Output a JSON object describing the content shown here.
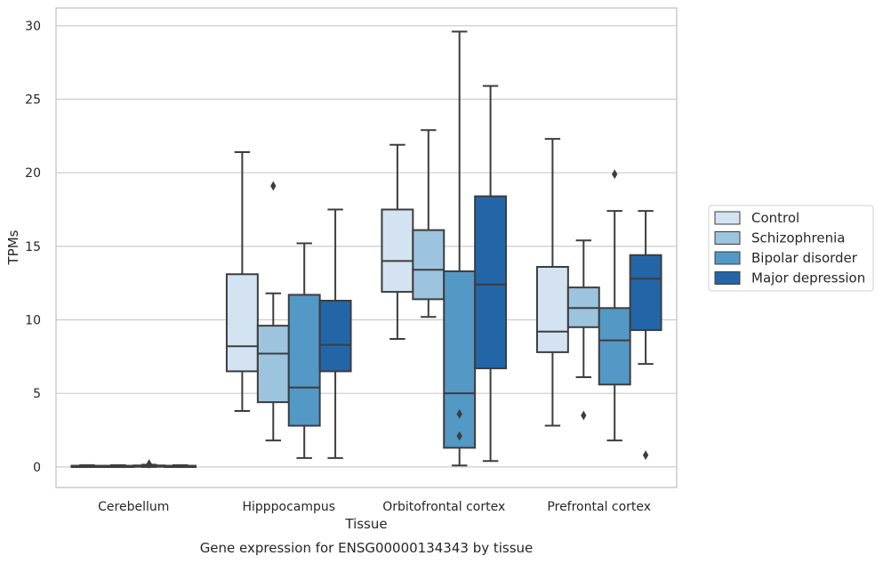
{
  "chart_data": {
    "type": "box",
    "title": "",
    "caption": "Gene expression for ENSG00000134343 by tissue",
    "xlabel": "Tissue",
    "ylabel": "TPMs",
    "ylim": [
      -1.4,
      31.2
    ],
    "yticks": [
      0,
      5,
      10,
      15,
      20,
      25,
      30
    ],
    "grid": true,
    "legend_placement": "center-right, outside plot",
    "categories": [
      "Cerebellum",
      "Hipppocampus",
      "Orbitofrontal cortex",
      "Prefrontal cortex"
    ],
    "series": [
      {
        "name": "Control",
        "color": "#d4e3f2",
        "boxes": [
          {
            "whisker_low": 0.0,
            "q1": 0.02,
            "median": 0.05,
            "q3": 0.08,
            "whisker_high": 0.12,
            "outliers": []
          },
          {
            "whisker_low": 3.8,
            "q1": 6.5,
            "median": 8.2,
            "q3": 13.1,
            "whisker_high": 21.4,
            "outliers": []
          },
          {
            "whisker_low": 8.7,
            "q1": 11.9,
            "median": 14.0,
            "q3": 17.5,
            "whisker_high": 21.9,
            "outliers": []
          },
          {
            "whisker_low": 2.8,
            "q1": 7.8,
            "median": 9.2,
            "q3": 13.6,
            "whisker_high": 22.3,
            "outliers": []
          }
        ]
      },
      {
        "name": "Schizophrenia",
        "color": "#9cc4de",
        "boxes": [
          {
            "whisker_low": 0.0,
            "q1": 0.02,
            "median": 0.05,
            "q3": 0.08,
            "whisker_high": 0.12,
            "outliers": []
          },
          {
            "whisker_low": 1.8,
            "q1": 4.4,
            "median": 7.7,
            "q3": 9.6,
            "whisker_high": 11.8,
            "outliers": [
              19.1
            ]
          },
          {
            "whisker_low": 10.2,
            "q1": 11.4,
            "median": 13.4,
            "q3": 16.1,
            "whisker_high": 22.9,
            "outliers": []
          },
          {
            "whisker_low": 6.1,
            "q1": 9.5,
            "median": 10.8,
            "q3": 12.2,
            "whisker_high": 15.4,
            "outliers": [
              3.5
            ]
          }
        ]
      },
      {
        "name": "Bipolar disorder",
        "color": "#5498c6",
        "boxes": [
          {
            "whisker_low": 0.0,
            "q1": 0.02,
            "median": 0.05,
            "q3": 0.1,
            "whisker_high": 0.15,
            "outliers": [
              0.2
            ]
          },
          {
            "whisker_low": 0.6,
            "q1": 2.8,
            "median": 5.4,
            "q3": 11.7,
            "whisker_high": 15.2,
            "outliers": []
          },
          {
            "whisker_low": 0.1,
            "q1": 1.3,
            "median": 5.0,
            "q3": 13.3,
            "whisker_high": 29.6,
            "outliers": [
              3.6,
              2.1
            ]
          },
          {
            "whisker_low": 1.8,
            "q1": 5.6,
            "median": 8.6,
            "q3": 10.8,
            "whisker_high": 17.4,
            "outliers": [
              19.9
            ]
          }
        ]
      },
      {
        "name": "Major depression",
        "color": "#2366a8",
        "boxes": [
          {
            "whisker_low": 0.0,
            "q1": 0.02,
            "median": 0.05,
            "q3": 0.08,
            "whisker_high": 0.12,
            "outliers": []
          },
          {
            "whisker_low": 0.6,
            "q1": 6.5,
            "median": 8.3,
            "q3": 11.3,
            "whisker_high": 17.5,
            "outliers": []
          },
          {
            "whisker_low": 0.4,
            "q1": 6.7,
            "median": 12.4,
            "q3": 18.4,
            "whisker_high": 25.9,
            "outliers": []
          },
          {
            "whisker_low": 7.0,
            "q1": 9.3,
            "median": 12.8,
            "q3": 14.4,
            "whisker_high": 17.4,
            "outliers": [
              0.8
            ]
          }
        ]
      }
    ]
  }
}
